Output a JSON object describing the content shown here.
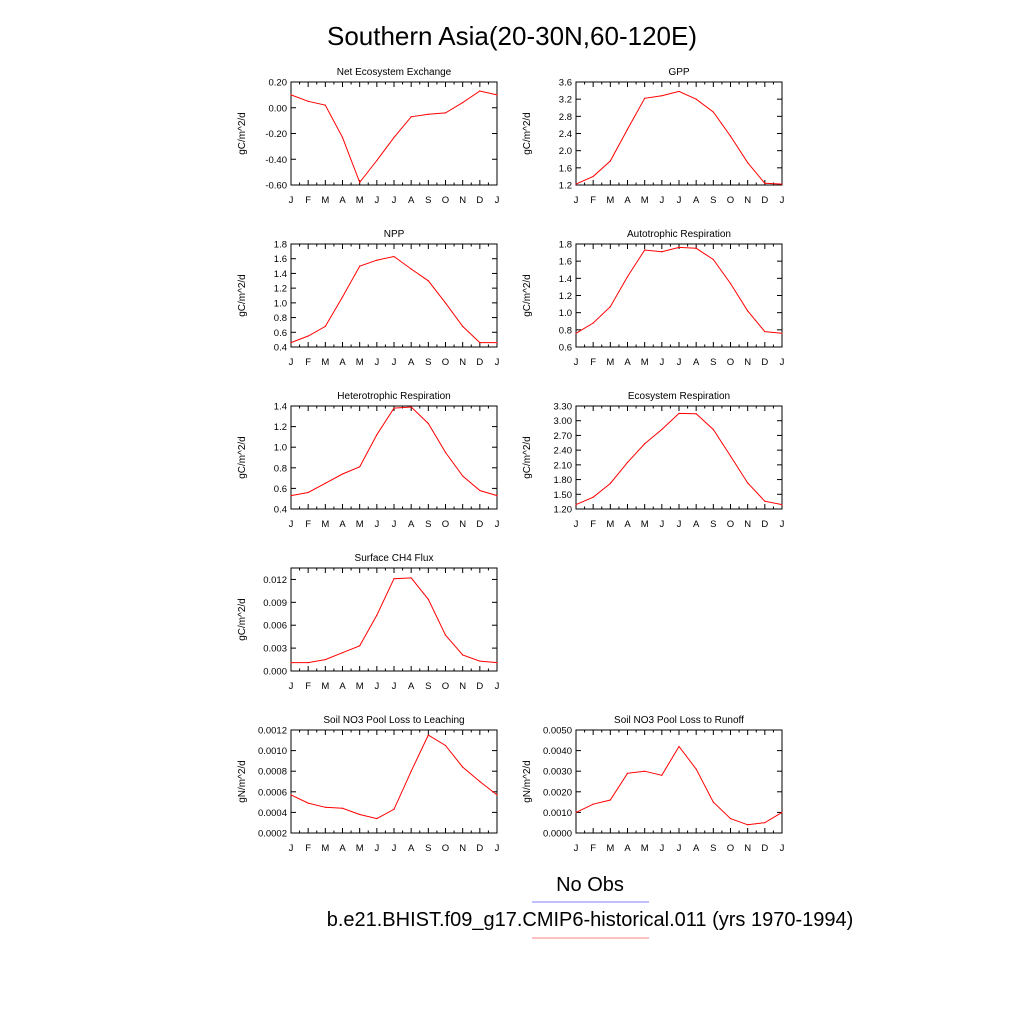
{
  "title": "Southern Asia(20-30N,60-120E)",
  "month_labels": [
    "J",
    "F",
    "M",
    "A",
    "M",
    "J",
    "J",
    "A",
    "S",
    "O",
    "N",
    "D",
    "J"
  ],
  "legend": [
    {
      "label": "No Obs",
      "color": "#8080ff"
    },
    {
      "label": "b.e21.BHIST.f09_g17.CMIP6-historical.011 (yrs 1970-1994)",
      "color": "#ff8080"
    }
  ],
  "colors": {
    "series": "#ff0000",
    "axis": "#000000"
  },
  "chart_data": [
    {
      "type": "line",
      "title": "Net Ecosystem Exchange",
      "ylabel": "gC/m^2/d",
      "ylim": [
        -0.6,
        0.2
      ],
      "yticks": [
        "-0.60",
        "-0.40",
        "-0.20",
        "0.00",
        "0.20"
      ],
      "x": [
        "J",
        "F",
        "M",
        "A",
        "M",
        "J",
        "J",
        "A",
        "S",
        "O",
        "N",
        "D",
        "J"
      ],
      "series": [
        {
          "values": [
            0.1,
            0.05,
            0.02,
            -0.23,
            -0.58,
            -0.41,
            -0.23,
            -0.07,
            -0.05,
            -0.04,
            0.04,
            0.13,
            0.1
          ]
        }
      ]
    },
    {
      "type": "line",
      "title": "GPP",
      "ylabel": "gC/m^2/d",
      "ylim": [
        1.2,
        3.6
      ],
      "yticks": [
        "1.2",
        "1.6",
        "2.0",
        "2.4",
        "2.8",
        "3.2",
        "3.6"
      ],
      "x": [
        "J",
        "F",
        "M",
        "A",
        "M",
        "J",
        "J",
        "A",
        "S",
        "O",
        "N",
        "D",
        "J"
      ],
      "series": [
        {
          "values": [
            1.22,
            1.4,
            1.76,
            2.5,
            3.22,
            3.28,
            3.38,
            3.2,
            2.9,
            2.34,
            1.72,
            1.24,
            1.22
          ]
        }
      ]
    },
    {
      "type": "line",
      "title": "NPP",
      "ylabel": "gC/m^2/d",
      "ylim": [
        0.4,
        1.8
      ],
      "yticks": [
        "0.4",
        "0.6",
        "0.8",
        "1.0",
        "1.2",
        "1.4",
        "1.6",
        "1.8"
      ],
      "x": [
        "J",
        "F",
        "M",
        "A",
        "M",
        "J",
        "J",
        "A",
        "S",
        "O",
        "N",
        "D",
        "J"
      ],
      "series": [
        {
          "values": [
            0.46,
            0.55,
            0.68,
            1.08,
            1.5,
            1.58,
            1.63,
            1.46,
            1.3,
            1.0,
            0.68,
            0.46,
            0.46
          ]
        }
      ]
    },
    {
      "type": "line",
      "title": "Autotrophic Respiration",
      "ylabel": "gC/m^2/d",
      "ylim": [
        0.6,
        1.8
      ],
      "yticks": [
        "0.6",
        "0.8",
        "1.0",
        "1.2",
        "1.4",
        "1.6",
        "1.8"
      ],
      "x": [
        "J",
        "F",
        "M",
        "A",
        "M",
        "J",
        "J",
        "A",
        "S",
        "O",
        "N",
        "D",
        "J"
      ],
      "series": [
        {
          "values": [
            0.76,
            0.88,
            1.07,
            1.42,
            1.73,
            1.71,
            1.76,
            1.75,
            1.62,
            1.34,
            1.02,
            0.78,
            0.76
          ]
        }
      ]
    },
    {
      "type": "line",
      "title": "Heterotrophic Respiration",
      "ylabel": "gC/m^2/d",
      "ylim": [
        0.4,
        1.4
      ],
      "yticks": [
        "0.4",
        "0.6",
        "0.8",
        "1.0",
        "1.2",
        "1.4"
      ],
      "x": [
        "J",
        "F",
        "M",
        "A",
        "M",
        "J",
        "J",
        "A",
        "S",
        "O",
        "N",
        "D",
        "J"
      ],
      "series": [
        {
          "values": [
            0.53,
            0.56,
            0.65,
            0.74,
            0.81,
            1.12,
            1.38,
            1.39,
            1.23,
            0.95,
            0.72,
            0.58,
            0.53
          ]
        }
      ]
    },
    {
      "type": "line",
      "title": "Ecosystem Respiration",
      "ylabel": "gC/m^2/d",
      "ylim": [
        1.2,
        3.3
      ],
      "yticks": [
        "1.20",
        "1.50",
        "1.80",
        "2.10",
        "2.40",
        "2.70",
        "3.00",
        "3.30"
      ],
      "x": [
        "J",
        "F",
        "M",
        "A",
        "M",
        "J",
        "J",
        "A",
        "S",
        "O",
        "N",
        "D",
        "J"
      ],
      "series": [
        {
          "values": [
            1.29,
            1.44,
            1.72,
            2.15,
            2.53,
            2.82,
            3.15,
            3.14,
            2.82,
            2.28,
            1.73,
            1.36,
            1.29
          ]
        }
      ]
    },
    {
      "type": "line",
      "title": "Surface CH4 Flux",
      "ylabel": "gC/m^2/d",
      "ylim": [
        0,
        0.0135
      ],
      "yticks": [
        "0.000",
        "0.003",
        "0.006",
        "0.009",
        "0.012"
      ],
      "x": [
        "J",
        "F",
        "M",
        "A",
        "M",
        "J",
        "J",
        "A",
        "S",
        "O",
        "N",
        "D",
        "J"
      ],
      "series": [
        {
          "values": [
            0.0011,
            0.0011,
            0.0015,
            0.0024,
            0.0033,
            0.0073,
            0.0121,
            0.0122,
            0.0094,
            0.0047,
            0.0021,
            0.0013,
            0.0011
          ]
        }
      ]
    },
    {
      "type": "line",
      "title": "Soil NO3 Pool Loss to Leaching",
      "ylabel": "gN/m^2/d",
      "ylim": [
        0.0002,
        0.0012
      ],
      "yticks": [
        "0.0002",
        "0.0004",
        "0.0006",
        "0.0008",
        "0.0010",
        "0.0012"
      ],
      "x": [
        "J",
        "F",
        "M",
        "A",
        "M",
        "J",
        "J",
        "A",
        "S",
        "O",
        "N",
        "D",
        "J"
      ],
      "series": [
        {
          "values": [
            0.00057,
            0.00049,
            0.00045,
            0.00044,
            0.00038,
            0.00034,
            0.00043,
            0.0008,
            0.00115,
            0.00105,
            0.00084,
            0.0007,
            0.00057
          ]
        }
      ]
    },
    {
      "type": "line",
      "title": "Soil NO3 Pool Loss to Runoff",
      "ylabel": "gN/m^2/d",
      "ylim": [
        0,
        0.005
      ],
      "yticks": [
        "0.0000",
        "0.0010",
        "0.0020",
        "0.0030",
        "0.0040",
        "0.0050"
      ],
      "x": [
        "J",
        "F",
        "M",
        "A",
        "M",
        "J",
        "J",
        "A",
        "S",
        "O",
        "N",
        "D",
        "J"
      ],
      "series": [
        {
          "values": [
            0.001,
            0.0014,
            0.0016,
            0.0029,
            0.003,
            0.0028,
            0.0042,
            0.0031,
            0.0015,
            0.0007,
            0.0004,
            0.0005,
            0.001
          ]
        }
      ]
    }
  ]
}
